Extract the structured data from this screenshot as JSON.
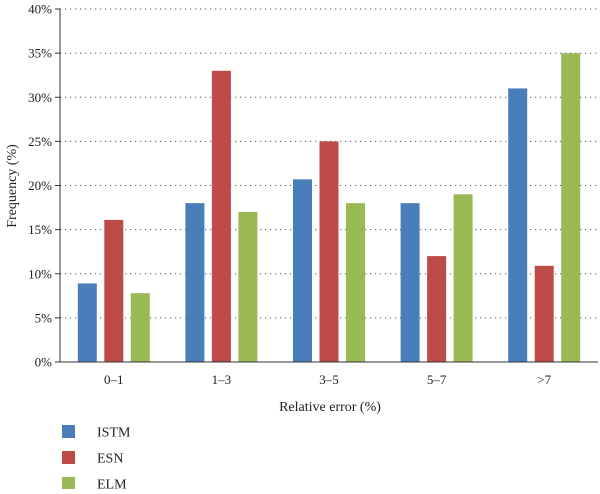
{
  "chart_data": {
    "type": "bar",
    "title": "",
    "xlabel": "Relative error (%)",
    "ylabel": "Frequency (%)",
    "ylim": [
      0,
      40
    ],
    "yticks": [
      "0%",
      "5%",
      "10%",
      "15%",
      "20%",
      "25%",
      "30%",
      "35%",
      "40%"
    ],
    "ytick_values": [
      0,
      5,
      10,
      15,
      20,
      25,
      30,
      35,
      40
    ],
    "grid": "horizontal dotted",
    "legend_position": "bottom-left",
    "categories": [
      "0–1",
      "1–3",
      "3–5",
      "5–7",
      ">7"
    ],
    "series": [
      {
        "name": "ISTM",
        "color": "#4a7ebb",
        "values": [
          8.9,
          18,
          20.7,
          18,
          31
        ]
      },
      {
        "name": "ESN",
        "color": "#be4b48",
        "values": [
          16.1,
          33,
          25,
          12,
          10.9
        ]
      },
      {
        "name": "ELM",
        "color": "#98b954",
        "values": [
          7.8,
          17,
          18,
          19,
          35
        ]
      }
    ]
  }
}
